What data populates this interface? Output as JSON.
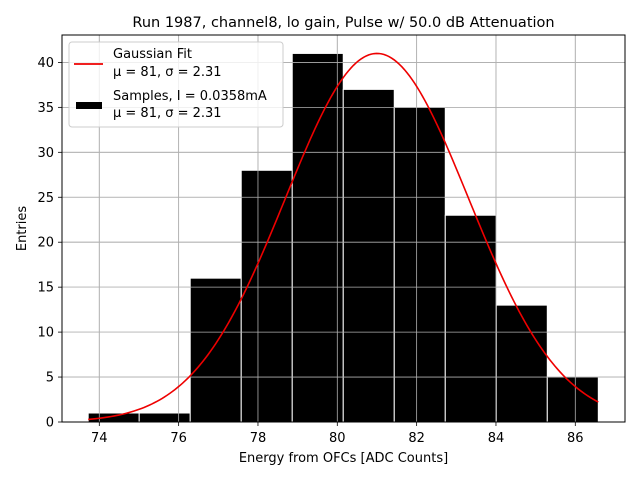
{
  "chart_data": {
    "type": "bar",
    "title": "Run 1987, channel8, lo gain, Pulse w/ 50.0 dB Attenuation",
    "xlabel": "Energy from OFCs [ADC Counts]",
    "ylabel": "Entries",
    "xlim": [
      73.1,
      87.2
    ],
    "ylim": [
      0,
      43.05
    ],
    "xticks": [
      74,
      76,
      78,
      80,
      82,
      84,
      86
    ],
    "yticks": [
      0,
      5,
      10,
      15,
      20,
      25,
      30,
      35,
      40
    ],
    "grid": true,
    "bin_edges": [
      73.72,
      75.006,
      76.292,
      77.578,
      78.864,
      80.15,
      81.436,
      82.722,
      84.008,
      85.294,
      86.58
    ],
    "values": [
      1,
      1,
      16,
      28,
      41,
      37,
      35,
      23,
      13,
      5
    ],
    "bar_color": "#000000",
    "bar_edge_color": "#ffffff",
    "fit": {
      "name": "Gaussian Fit",
      "mu": 81,
      "sigma": 2.31,
      "amplitude": 41,
      "x_range": [
        73.72,
        86.58
      ],
      "color": "#ee0000"
    },
    "legend": {
      "placement": "top-left",
      "entries": [
        {
          "line1": "Gaussian Fit",
          "line2": "μ = 81, σ = 2.31",
          "kind": "line",
          "color": "#ee0000"
        },
        {
          "line1": "Samples, I = 0.0358mA",
          "line2": "μ = 81, σ = 2.31",
          "kind": "patch",
          "color": "#000000"
        }
      ]
    }
  }
}
